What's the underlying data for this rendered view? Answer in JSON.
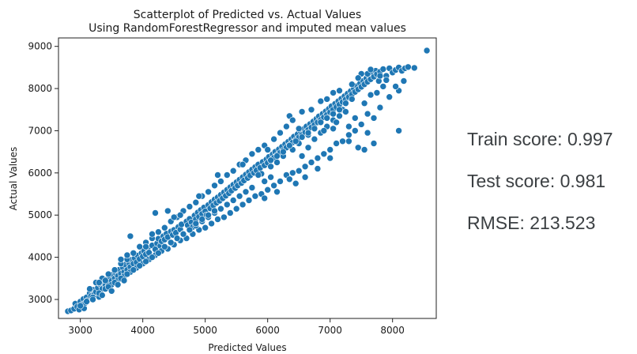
{
  "chart_data": {
    "type": "scatter",
    "title": "Scatterplot of Predicted vs. Actual Values",
    "subtitle": "Using RandomForestRegressor and imputed mean values",
    "xlabel": "Predicted Values",
    "ylabel": "Actual Values",
    "xlim": [
      2650,
      8700
    ],
    "ylim": [
      2550,
      9200
    ],
    "x_ticks": [
      3000,
      4000,
      5000,
      6000,
      7000,
      8000
    ],
    "y_ticks": [
      3000,
      4000,
      5000,
      6000,
      7000,
      8000,
      9000
    ],
    "grid": false,
    "marker_color": "#1f77b4",
    "points": [
      [
        2800,
        2720
      ],
      [
        2850,
        2740
      ],
      [
        2900,
        2780
      ],
      [
        2920,
        2900
      ],
      [
        2950,
        2830
      ],
      [
        2980,
        2760
      ],
      [
        3000,
        2950
      ],
      [
        3020,
        2870
      ],
      [
        3050,
        3010
      ],
      [
        3060,
        2790
      ],
      [
        3080,
        2920
      ],
      [
        3100,
        3050
      ],
      [
        3120,
        2980
      ],
      [
        3150,
        3150
      ],
      [
        3170,
        3080
      ],
      [
        3200,
        3230
      ],
      [
        3220,
        3120
      ],
      [
        3250,
        3180
      ],
      [
        3280,
        3280
      ],
      [
        3300,
        3060
      ],
      [
        3320,
        3360
      ],
      [
        3350,
        3250
      ],
      [
        3380,
        3400
      ],
      [
        3400,
        3330
      ],
      [
        3420,
        3470
      ],
      [
        3450,
        3380
      ],
      [
        3470,
        3510
      ],
      [
        3500,
        3440
      ],
      [
        3520,
        3590
      ],
      [
        3550,
        3500
      ],
      [
        3570,
        3620
      ],
      [
        3600,
        3560
      ],
      [
        3620,
        3700
      ],
      [
        3650,
        3610
      ],
      [
        3680,
        3760
      ],
      [
        3700,
        3650
      ],
      [
        3720,
        3830
      ],
      [
        3750,
        3700
      ],
      [
        3780,
        3860
      ],
      [
        3800,
        3770
      ],
      [
        3820,
        3940
      ],
      [
        3850,
        3850
      ],
      [
        3870,
        3980
      ],
      [
        3900,
        3880
      ],
      [
        3920,
        4040
      ],
      [
        3950,
        3960
      ],
      [
        3980,
        4100
      ],
      [
        4000,
        4020
      ],
      [
        4020,
        4150
      ],
      [
        4050,
        4070
      ],
      [
        4080,
        4220
      ],
      [
        4100,
        4110
      ],
      [
        4150,
        4280
      ],
      [
        4200,
        4190
      ],
      [
        4230,
        4330
      ],
      [
        4250,
        4440
      ],
      [
        4280,
        4270
      ],
      [
        4300,
        4380
      ],
      [
        4330,
        4500
      ],
      [
        4350,
        4420
      ],
      [
        4380,
        4560
      ],
      [
        4400,
        4480
      ],
      [
        4450,
        4610
      ],
      [
        4480,
        4530
      ],
      [
        4500,
        4650
      ],
      [
        4530,
        4580
      ],
      [
        4570,
        4720
      ],
      [
        4600,
        4660
      ],
      [
        4620,
        4780
      ],
      [
        4650,
        4560
      ],
      [
        4700,
        4850
      ],
      [
        4720,
        4760
      ],
      [
        4750,
        4910
      ],
      [
        4780,
        4830
      ],
      [
        4800,
        4720
      ],
      [
        4830,
        4990
      ],
      [
        4850,
        4900
      ],
      [
        4880,
        5060
      ],
      [
        4900,
        4960
      ],
      [
        4930,
        5120
      ],
      [
        4950,
        5030
      ],
      [
        4980,
        5180
      ],
      [
        5000,
        5090
      ],
      [
        5020,
        5000
      ],
      [
        5050,
        5240
      ],
      [
        5080,
        5160
      ],
      [
        5100,
        5310
      ],
      [
        5130,
        5230
      ],
      [
        5150,
        5370
      ],
      [
        5180,
        5290
      ],
      [
        5200,
        5420
      ],
      [
        5230,
        5340
      ],
      [
        5250,
        5480
      ],
      [
        5280,
        5400
      ],
      [
        5300,
        5540
      ],
      [
        5330,
        5460
      ],
      [
        5350,
        5600
      ],
      [
        5380,
        5520
      ],
      [
        5400,
        5660
      ],
      [
        5420,
        5580
      ],
      [
        5450,
        5720
      ],
      [
        5480,
        5640
      ],
      [
        5500,
        5780
      ],
      [
        5520,
        5700
      ],
      [
        5550,
        5840
      ],
      [
        5580,
        5760
      ],
      [
        5600,
        5900
      ],
      [
        5620,
        5820
      ],
      [
        5650,
        5960
      ],
      [
        5680,
        5880
      ],
      [
        5700,
        6020
      ],
      [
        5720,
        5940
      ],
      [
        5750,
        6080
      ],
      [
        5780,
        6000
      ],
      [
        5800,
        6140
      ],
      [
        5820,
        6060
      ],
      [
        5850,
        6200
      ],
      [
        5880,
        6120
      ],
      [
        5900,
        5980
      ],
      [
        5920,
        6260
      ],
      [
        5950,
        6180
      ],
      [
        5980,
        6320
      ],
      [
        6000,
        6240
      ],
      [
        6020,
        6380
      ],
      [
        6050,
        6300
      ],
      [
        6080,
        6440
      ],
      [
        6100,
        6360
      ],
      [
        6120,
        6500
      ],
      [
        6150,
        6420
      ],
      [
        6180,
        6560
      ],
      [
        6200,
        6480
      ],
      [
        6230,
        6620
      ],
      [
        6250,
        6540
      ],
      [
        6280,
        6680
      ],
      [
        6300,
        6600
      ],
      [
        6330,
        6740
      ],
      [
        6350,
        6660
      ],
      [
        6380,
        6800
      ],
      [
        6400,
        6720
      ],
      [
        6420,
        6860
      ],
      [
        6450,
        6780
      ],
      [
        6480,
        6920
      ],
      [
        6500,
        6840
      ],
      [
        6530,
        6980
      ],
      [
        6550,
        6900
      ],
      [
        6580,
        7040
      ],
      [
        6600,
        6960
      ],
      [
        6620,
        7100
      ],
      [
        6650,
        7020
      ],
      [
        6680,
        7160
      ],
      [
        6700,
        7080
      ],
      [
        6730,
        7220
      ],
      [
        6750,
        7140
      ],
      [
        6780,
        7280
      ],
      [
        6800,
        7200
      ],
      [
        6820,
        7340
      ],
      [
        6850,
        7260
      ],
      [
        6880,
        7400
      ],
      [
        6900,
        7320
      ],
      [
        6930,
        7460
      ],
      [
        6950,
        7380
      ],
      [
        6980,
        7520
      ],
      [
        7000,
        7440
      ],
      [
        7020,
        7580
      ],
      [
        7050,
        7500
      ],
      [
        7080,
        7640
      ],
      [
        7100,
        7560
      ],
      [
        7130,
        7700
      ],
      [
        7150,
        7620
      ],
      [
        7180,
        7760
      ],
      [
        7200,
        7680
      ],
      [
        7230,
        7820
      ],
      [
        7250,
        7740
      ],
      [
        7280,
        7880
      ],
      [
        7300,
        7800
      ],
      [
        7330,
        7940
      ],
      [
        7350,
        7860
      ],
      [
        7380,
        8000
      ],
      [
        7400,
        7920
      ],
      [
        7430,
        8060
      ],
      [
        7450,
        7980
      ],
      [
        7480,
        8120
      ],
      [
        7500,
        8040
      ],
      [
        7530,
        8180
      ],
      [
        7550,
        8100
      ],
      [
        7580,
        8240
      ],
      [
        7600,
        8160
      ],
      [
        7630,
        8300
      ],
      [
        7650,
        8220
      ],
      [
        7680,
        8360
      ],
      [
        7700,
        8280
      ],
      [
        7730,
        8420
      ],
      [
        7750,
        8340
      ],
      [
        7780,
        8180
      ],
      [
        7800,
        8400
      ],
      [
        7850,
        8460
      ],
      [
        7900,
        8300
      ],
      [
        7950,
        8480
      ],
      [
        8000,
        8380
      ],
      [
        8050,
        8440
      ],
      [
        8100,
        8500
      ],
      [
        8150,
        8420
      ],
      [
        8200,
        8480
      ],
      [
        8250,
        8510
      ],
      [
        8350,
        8490
      ],
      [
        8550,
        8900
      ],
      [
        8100,
        7950
      ],
      [
        8180,
        8180
      ],
      [
        8050,
        8050
      ],
      [
        7950,
        7800
      ],
      [
        7800,
        7550
      ],
      [
        7700,
        7300
      ],
      [
        7600,
        7400
      ],
      [
        7500,
        7150
      ],
      [
        7400,
        7000
      ],
      [
        7300,
        6900
      ],
      [
        7200,
        6750
      ],
      [
        7100,
        6700
      ],
      [
        7000,
        6550
      ],
      [
        6900,
        6450
      ],
      [
        6800,
        6350
      ],
      [
        6700,
        6250
      ],
      [
        6600,
        6150
      ],
      [
        6500,
        6050
      ],
      [
        6400,
        6000
      ],
      [
        6300,
        5950
      ],
      [
        6200,
        5800
      ],
      [
        6100,
        5700
      ],
      [
        6000,
        5600
      ],
      [
        5900,
        5500
      ],
      [
        5800,
        5450
      ],
      [
        5700,
        5350
      ],
      [
        5600,
        5250
      ],
      [
        5500,
        5150
      ],
      [
        5400,
        5050
      ],
      [
        5300,
        4950
      ],
      [
        5200,
        4900
      ],
      [
        5100,
        4800
      ],
      [
        5000,
        4700
      ],
      [
        4900,
        4650
      ],
      [
        4800,
        4550
      ],
      [
        4700,
        4450
      ],
      [
        4600,
        4400
      ],
      [
        4500,
        4300
      ],
      [
        4400,
        4200
      ],
      [
        4300,
        4150
      ],
      [
        4200,
        4050
      ],
      [
        4100,
        3950
      ],
      [
        4000,
        3850
      ],
      [
        3900,
        3750
      ],
      [
        3800,
        3650
      ],
      [
        3700,
        3550
      ],
      [
        3600,
        3450
      ],
      [
        3500,
        3350
      ],
      [
        3400,
        3250
      ],
      [
        3300,
        3150
      ],
      [
        3200,
        3050
      ],
      [
        3100,
        2950
      ],
      [
        3000,
        2850
      ],
      [
        6350,
        7350
      ],
      [
        6400,
        7250
      ],
      [
        6550,
        7450
      ],
      [
        6700,
        7500
      ],
      [
        6850,
        7700
      ],
      [
        6950,
        7750
      ],
      [
        7050,
        7900
      ],
      [
        7150,
        7950
      ],
      [
        6300,
        7100
      ],
      [
        6200,
        6950
      ],
      [
        6100,
        6800
      ],
      [
        5950,
        6650
      ],
      [
        5850,
        6550
      ],
      [
        5750,
        6450
      ],
      [
        5650,
        6300
      ],
      [
        5550,
        6200
      ],
      [
        5450,
        6050
      ],
      [
        5350,
        5950
      ],
      [
        5250,
        5800
      ],
      [
        5150,
        5700
      ],
      [
        5050,
        5550
      ],
      [
        4950,
        5450
      ],
      [
        4850,
        5300
      ],
      [
        4750,
        5200
      ],
      [
        4650,
        5100
      ],
      [
        4550,
        4950
      ],
      [
        4450,
        4850
      ],
      [
        4350,
        4700
      ],
      [
        4250,
        4600
      ],
      [
        4150,
        4450
      ],
      [
        4050,
        4350
      ],
      [
        3950,
        4250
      ],
      [
        3850,
        4100
      ],
      [
        3750,
        3950
      ],
      [
        3650,
        3850
      ],
      [
        3550,
        3700
      ],
      [
        3450,
        3600
      ],
      [
        3350,
        3500
      ],
      [
        3250,
        3400
      ],
      [
        3150,
        3250
      ],
      [
        4600,
        5000
      ],
      [
        4200,
        5050
      ],
      [
        4400,
        5100
      ],
      [
        3800,
        4500
      ],
      [
        4900,
        5450
      ],
      [
        5200,
        5950
      ],
      [
        5600,
        6200
      ],
      [
        6000,
        6550
      ],
      [
        6500,
        7050
      ],
      [
        7200,
        7500
      ],
      [
        7300,
        7100
      ],
      [
        7400,
        7300
      ],
      [
        7550,
        7650
      ],
      [
        7650,
        7850
      ],
      [
        7750,
        7900
      ],
      [
        7850,
        8050
      ],
      [
        7900,
        8200
      ],
      [
        7600,
        6950
      ],
      [
        7700,
        6700
      ],
      [
        8100,
        7000
      ],
      [
        7450,
        6600
      ],
      [
        7550,
        6550
      ],
      [
        7300,
        6750
      ],
      [
        7000,
        6350
      ],
      [
        6800,
        6100
      ],
      [
        6600,
        5900
      ],
      [
        6450,
        5750
      ],
      [
        6350,
        5850
      ],
      [
        6150,
        5550
      ],
      [
        5950,
        5400
      ],
      [
        6550,
        6400
      ],
      [
        6650,
        6600
      ],
      [
        6750,
        6800
      ],
      [
        6850,
        6950
      ],
      [
        6950,
        7100
      ],
      [
        7050,
        7250
      ],
      [
        7150,
        7350
      ],
      [
        7250,
        7450
      ],
      [
        5950,
        5800
      ],
      [
        6050,
        5900
      ],
      [
        5750,
        5650
      ],
      [
        5650,
        5550
      ],
      [
        5550,
        5450
      ],
      [
        5450,
        5350
      ],
      [
        5350,
        5250
      ],
      [
        5250,
        5150
      ],
      [
        5150,
        5050
      ],
      [
        5050,
        4950
      ],
      [
        4950,
        4850
      ],
      [
        4850,
        4750
      ],
      [
        6900,
        7000
      ],
      [
        7050,
        7050
      ],
      [
        7100,
        7200
      ],
      [
        6650,
        6900
      ],
      [
        6500,
        6700
      ],
      [
        6400,
        6550
      ],
      [
        6250,
        6400
      ],
      [
        6150,
        6250
      ],
      [
        6050,
        6150
      ],
      [
        5850,
        5950
      ],
      [
        3200,
        3000
      ],
      [
        3350,
        3100
      ],
      [
        3450,
        3300
      ],
      [
        3550,
        3400
      ],
      [
        3650,
        3500
      ],
      [
        3750,
        3600
      ],
      [
        3850,
        3700
      ],
      [
        3950,
        3800
      ],
      [
        4050,
        3900
      ],
      [
        4150,
        4000
      ],
      [
        4250,
        4100
      ],
      [
        4350,
        4250
      ],
      [
        4450,
        4350
      ],
      [
        4550,
        4450
      ],
      [
        4650,
        4550
      ],
      [
        4750,
        4650
      ],
      [
        4850,
        4800
      ],
      [
        4950,
        4900
      ],
      [
        5050,
        5000
      ],
      [
        5150,
        5100
      ],
      [
        3600,
        3350
      ],
      [
        3500,
        3200
      ],
      [
        3700,
        3450
      ],
      [
        3400,
        3450
      ],
      [
        3300,
        3400
      ],
      [
        3650,
        3950
      ],
      [
        3750,
        4050
      ],
      [
        4050,
        4250
      ],
      [
        4150,
        4550
      ],
      [
        4500,
        4950
      ],
      [
        7600,
        8350
      ],
      [
        7500,
        8350
      ],
      [
        7450,
        8250
      ],
      [
        7350,
        8100
      ],
      [
        7650,
        8450
      ],
      [
        7800,
        8300
      ],
      [
        7350,
        7750
      ],
      [
        7250,
        7650
      ],
      [
        7150,
        7500
      ],
      [
        7050,
        7400
      ],
      [
        6950,
        7300
      ],
      [
        6850,
        7200
      ],
      [
        6750,
        7050
      ],
      [
        6650,
        6950
      ],
      [
        6550,
        6850
      ],
      [
        6450,
        6750
      ],
      [
        6350,
        6650
      ],
      [
        6250,
        6500
      ],
      [
        6150,
        6400
      ],
      [
        6050,
        6300
      ]
    ]
  },
  "metrics": {
    "train": "Train score: 0.997",
    "test": "Test score: 0.981",
    "rmse": "RMSE: 213.523"
  }
}
